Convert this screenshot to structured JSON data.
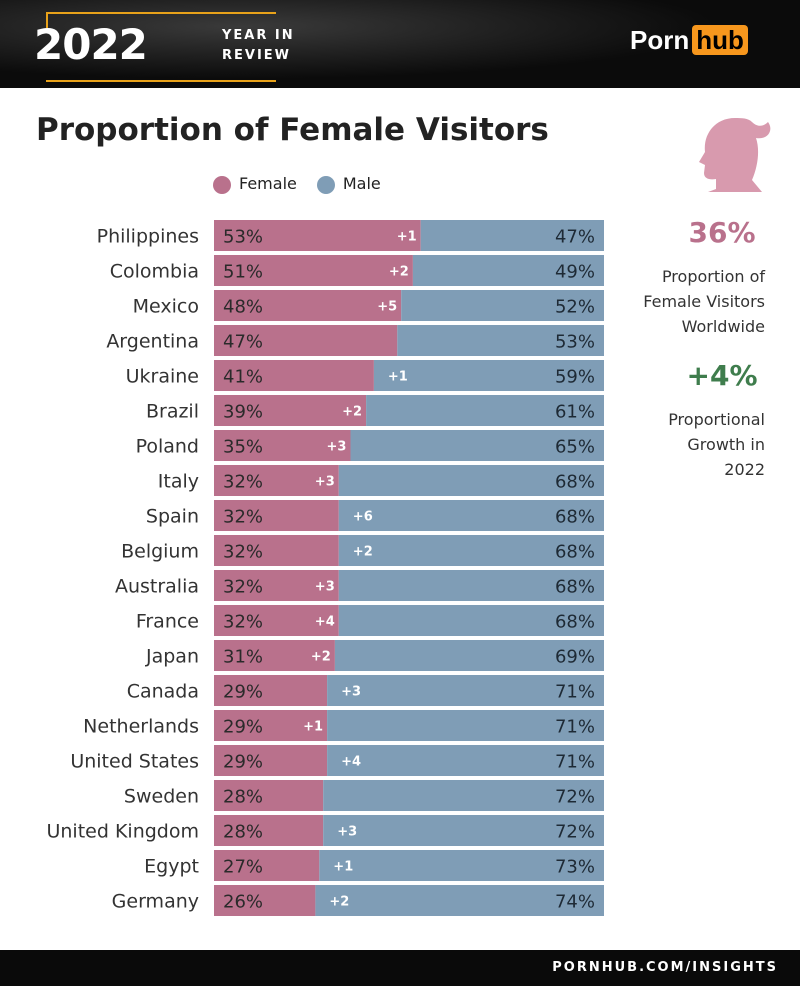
{
  "header": {
    "year": "2022",
    "subtitle_line1": "YEAR IN",
    "subtitle_line2": "REVIEW",
    "logo_part1": "Porn",
    "logo_part2": "hub"
  },
  "footer": {
    "url": "PORNHUB.COM/INSIGHTS"
  },
  "side": {
    "worldwide_value": "36%",
    "worldwide_label": [
      "Proportion of",
      "Female Visitors",
      "Worldwide"
    ],
    "growth_value": "+4%",
    "growth_label": [
      "Proportional",
      "Growth in",
      "2022"
    ],
    "icon": "female-silhouette-icon"
  },
  "colors": {
    "female": "#b9718c",
    "male": "#7f9db6",
    "accent_pink": "#b9718c",
    "accent_green": "#3f7d4d"
  },
  "chart_data": {
    "type": "bar",
    "stacked": true,
    "orientation": "horizontal",
    "title": "Proportion of Female Visitors",
    "legend": [
      "Female",
      "Male"
    ],
    "legend_placement": "top",
    "categories": [
      "Philippines",
      "Colombia",
      "Mexico",
      "Argentina",
      "Ukraine",
      "Brazil",
      "Poland",
      "Italy",
      "Spain",
      "Belgium",
      "Australia",
      "France",
      "Japan",
      "Canada",
      "Netherlands",
      "United States",
      "Sweden",
      "United Kingdom",
      "Egypt",
      "Germany"
    ],
    "series": [
      {
        "name": "Female",
        "values": [
          53,
          51,
          48,
          47,
          41,
          39,
          35,
          32,
          32,
          32,
          32,
          32,
          31,
          29,
          29,
          29,
          28,
          28,
          27,
          26
        ]
      },
      {
        "name": "Male",
        "values": [
          47,
          49,
          52,
          53,
          59,
          61,
          65,
          68,
          68,
          68,
          68,
          68,
          69,
          71,
          71,
          71,
          72,
          72,
          73,
          74
        ]
      }
    ],
    "change": [
      "+1",
      "+2",
      "+5",
      "",
      "+1",
      "+2",
      "+3",
      "+3",
      "+6",
      "+2",
      "+3",
      "+4",
      "+2",
      "+3",
      "+1",
      "+4",
      "",
      "+3",
      "+1",
      "+2"
    ],
    "xlim": [
      0,
      100
    ]
  }
}
